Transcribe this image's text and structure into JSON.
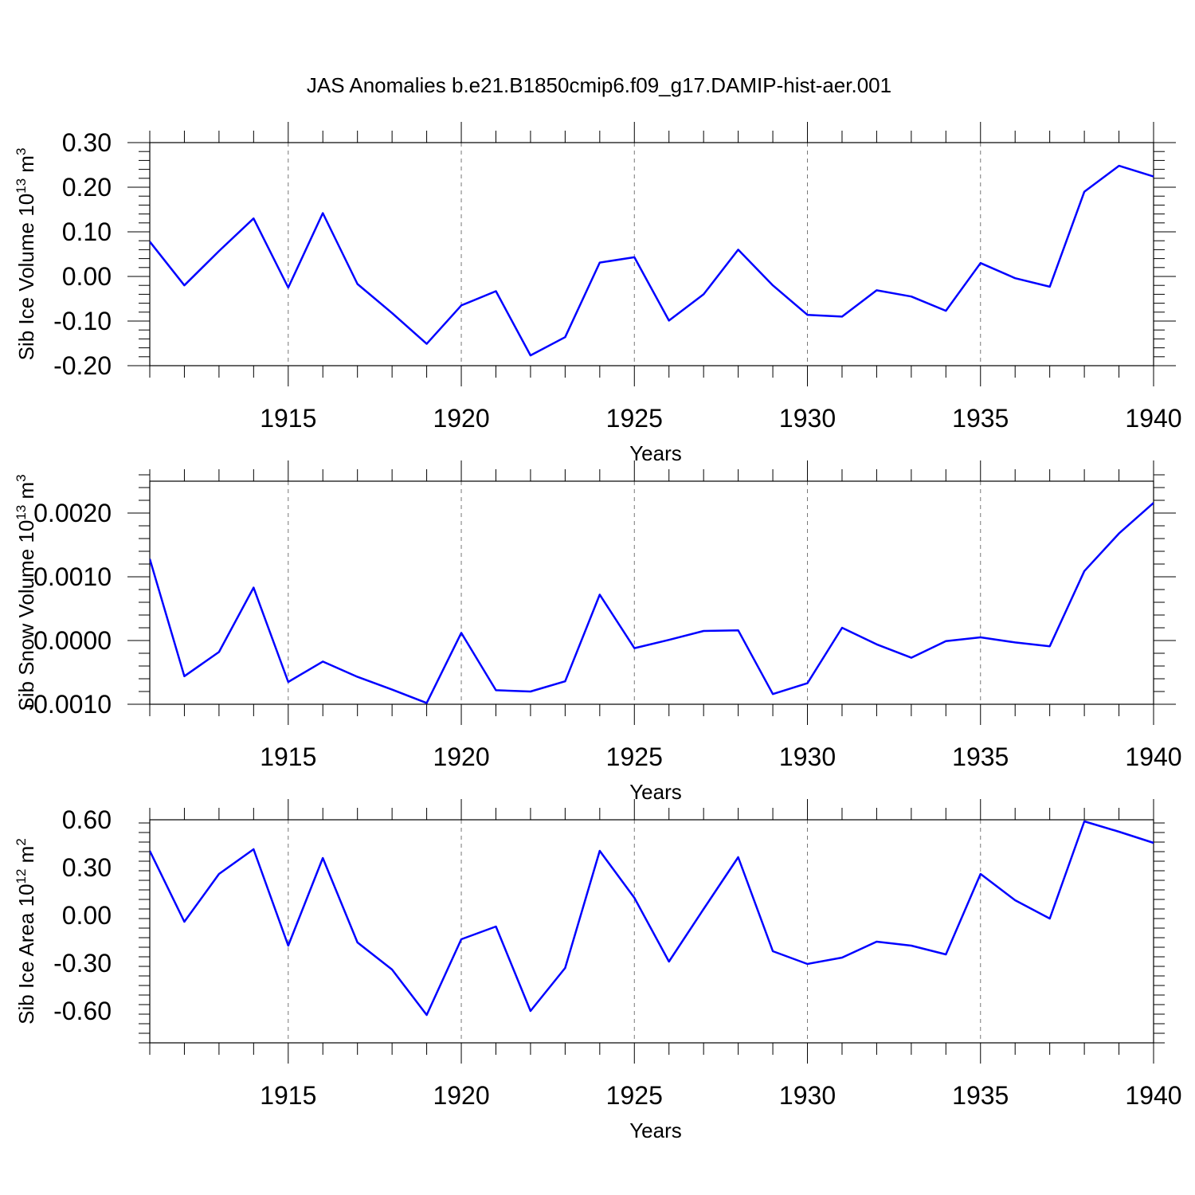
{
  "chart_data": {
    "type": "line",
    "title": "JAS Anomalies b.e21.B1850cmip6.f09_g17.DAMIP-hist-aer.001",
    "x": [
      1911,
      1912,
      1913,
      1914,
      1915,
      1916,
      1917,
      1918,
      1919,
      1920,
      1921,
      1922,
      1923,
      1924,
      1925,
      1926,
      1927,
      1928,
      1929,
      1930,
      1931,
      1932,
      1933,
      1934,
      1935,
      1936,
      1937,
      1938,
      1939,
      1940
    ],
    "xlim": [
      1911,
      1940
    ],
    "xticks": [
      "1915",
      "1920",
      "1925",
      "1930",
      "1935",
      "1940"
    ],
    "panels": [
      {
        "name": "sib-ice-volume",
        "ylabel": "Sib Ice Volume 10",
        "ylabel_sup": "13",
        "ylabel_unit": " m",
        "ylabel_unit_sup": "3",
        "xlabel": "Years",
        "ylim": [
          -0.2,
          0.3
        ],
        "yticks": [
          0.3,
          0.2,
          0.1,
          0.0,
          -0.1,
          -0.2
        ],
        "ytick_labels": [
          "0.30",
          "0.20",
          "0.10",
          "0.00",
          "-0.10",
          "-0.20"
        ],
        "values": [
          0.078,
          -0.02,
          0.057,
          0.13,
          -0.025,
          0.142,
          -0.017,
          -0.082,
          -0.151,
          -0.065,
          -0.033,
          -0.177,
          -0.136,
          0.031,
          0.043,
          -0.099,
          -0.04,
          0.06,
          -0.02,
          -0.086,
          -0.09,
          -0.031,
          -0.045,
          -0.077,
          0.03,
          -0.004,
          -0.023,
          0.19,
          0.248,
          0.224
        ]
      },
      {
        "name": "sib-snow-volume",
        "ylabel": "Sib Snow Volume 10",
        "ylabel_sup": "13",
        "ylabel_unit": " m",
        "ylabel_unit_sup": "3",
        "xlabel": "Years",
        "ylim": [
          -0.001,
          0.0025
        ],
        "yticks": [
          0.002,
          0.001,
          0.0,
          -0.001
        ],
        "ytick_labels": [
          "0.0020",
          "0.0010",
          "0.0000",
          "-0.0010"
        ],
        "values": [
          0.00128,
          -0.00056,
          -0.00018,
          0.00083,
          -0.00065,
          -0.00033,
          -0.00057,
          -0.00077,
          -0.00098,
          0.00012,
          -0.00078,
          -0.0008,
          -0.00064,
          0.00072,
          -0.00012,
          1e-05,
          0.00015,
          0.00016,
          -0.00084,
          -0.00067,
          0.0002,
          -6e-05,
          -0.00027,
          -1e-05,
          5e-05,
          -3e-05,
          -9e-05,
          0.00109,
          0.00168,
          0.00216
        ]
      },
      {
        "name": "sib-ice-area",
        "ylabel": "Sib Ice Area 10",
        "ylabel_sup": "12",
        "ylabel_unit": " m",
        "ylabel_unit_sup": "2",
        "xlabel": "Years",
        "ylim": [
          -0.8,
          0.6
        ],
        "yticks": [
          0.6,
          0.3,
          0.0,
          -0.3,
          -0.6
        ],
        "ytick_labels": [
          "0.60",
          "0.30",
          "0.00",
          "-0.30",
          "-0.60"
        ],
        "values": [
          0.405,
          -0.04,
          0.26,
          0.415,
          -0.19,
          0.36,
          -0.17,
          -0.34,
          -0.625,
          -0.15,
          -0.07,
          -0.6,
          -0.33,
          0.405,
          0.11,
          -0.29,
          0.04,
          0.365,
          -0.225,
          -0.305,
          -0.265,
          -0.165,
          -0.19,
          -0.245,
          0.26,
          0.095,
          -0.02,
          0.59,
          0.525,
          0.455
        ]
      }
    ]
  }
}
